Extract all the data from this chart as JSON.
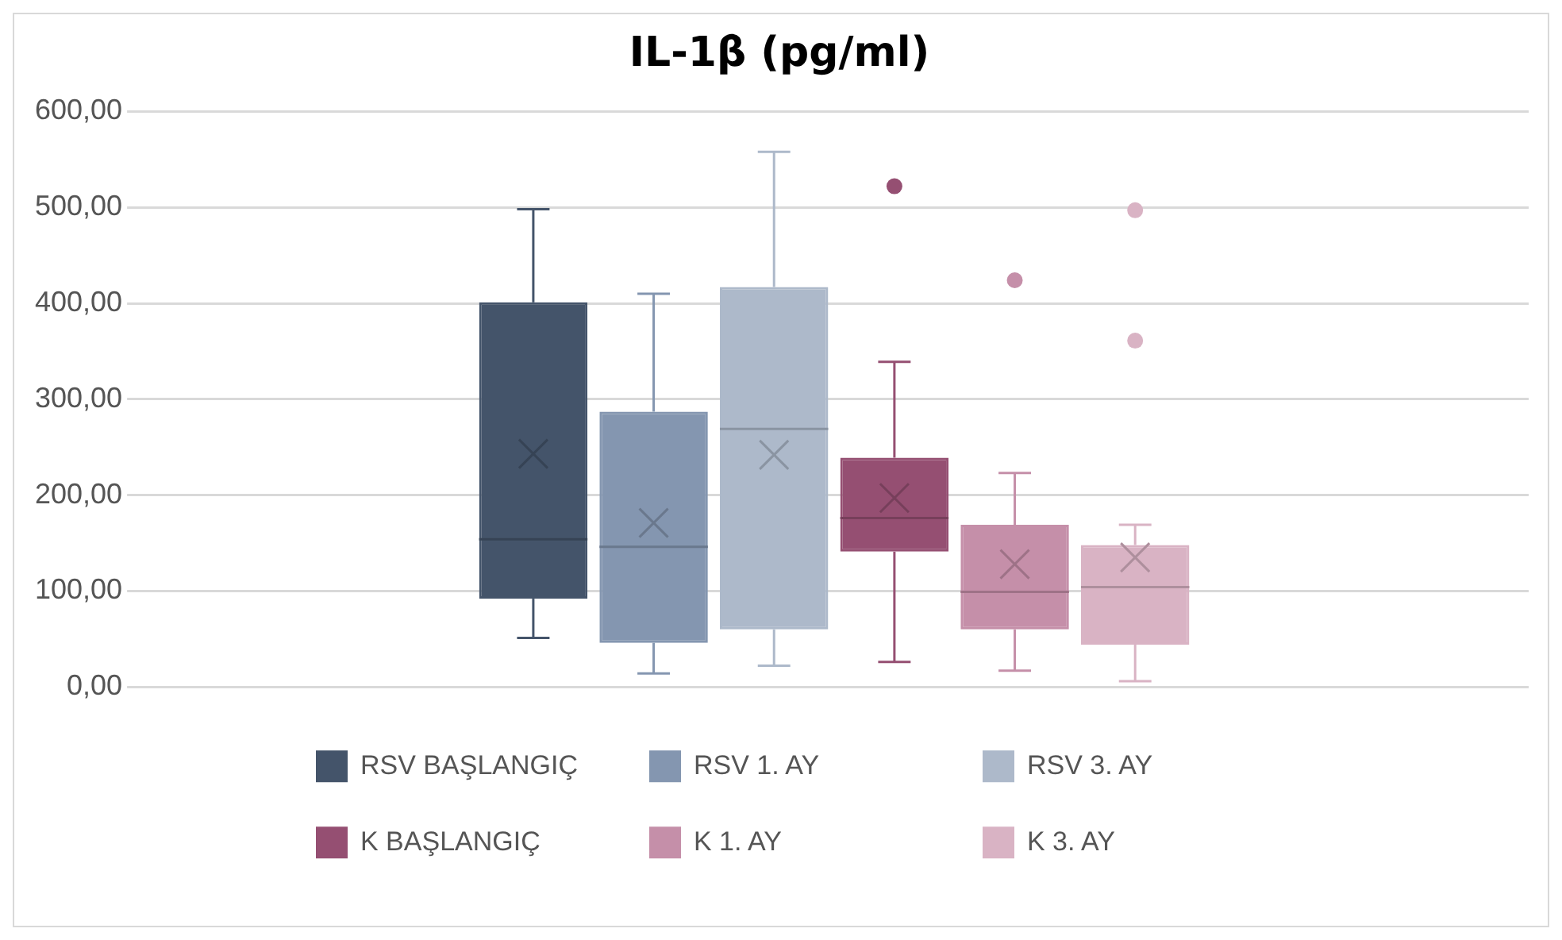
{
  "chart_data": {
    "type": "box",
    "title": "IL-1β (pg/ml)",
    "categories": [
      null
    ],
    "ylim": [
      0,
      600
    ],
    "yticks": [
      {
        "value": 0,
        "label": "0,00"
      },
      {
        "value": 100,
        "label": "100,00"
      },
      {
        "value": 200,
        "label": "200,00"
      },
      {
        "value": 300,
        "label": "300,00"
      },
      {
        "value": 400,
        "label": "400,00"
      },
      {
        "value": 500,
        "label": "500,00"
      },
      {
        "value": 600,
        "label": "600,00"
      }
    ],
    "grid": "y",
    "legend": "bottom",
    "marker": "cross",
    "series": [
      {
        "name": "RSV BAŞLANGIÇ",
        "color": "#44546a",
        "boxes": [
          {
            "low": 51,
            "q1": 92,
            "median": 154,
            "q3": 401,
            "high": 498,
            "mean": 243
          }
        ]
      },
      {
        "name": "RSV 1. AY",
        "color": "#8496b0",
        "boxes": [
          {
            "low": 14,
            "q1": 46,
            "median": 146,
            "q3": 287,
            "high": 410,
            "mean": 171
          }
        ]
      },
      {
        "name": "RSV 3. AY",
        "color": "#adb9ca",
        "boxes": [
          {
            "low": 22,
            "q1": 60,
            "median": 269,
            "q3": 417,
            "high": 558,
            "mean": 242
          }
        ]
      },
      {
        "name": "K BAŞLANGIÇ",
        "color": "#954f72",
        "boxes": [
          {
            "low": 26,
            "q1": 141,
            "median": 176,
            "q3": 239,
            "high": 339,
            "mean": 197,
            "outliers": [
              522
            ]
          }
        ]
      },
      {
        "name": "K 1. AY",
        "color": "#c58fa9",
        "boxes": [
          {
            "low": 17,
            "q1": 60,
            "median": 99,
            "q3": 169,
            "high": 223,
            "mean": 128,
            "outliers": [
              424
            ]
          }
        ]
      },
      {
        "name": "K 3. AY",
        "color": "#d9b3c4",
        "boxes": [
          {
            "low": 6,
            "q1": 44,
            "median": 104,
            "q3": 148,
            "high": 169,
            "mean": 135,
            "outliers": [
              497,
              361
            ]
          }
        ]
      }
    ]
  }
}
